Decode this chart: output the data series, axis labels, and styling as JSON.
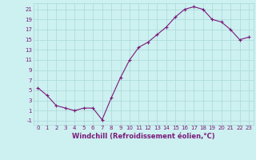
{
  "x": [
    0,
    1,
    2,
    3,
    4,
    5,
    6,
    7,
    8,
    9,
    10,
    11,
    12,
    13,
    14,
    15,
    16,
    17,
    18,
    19,
    20,
    21,
    22,
    23
  ],
  "y": [
    5.5,
    4.0,
    2.0,
    1.5,
    1.0,
    1.5,
    1.5,
    -0.8,
    3.5,
    7.5,
    11.0,
    13.5,
    14.5,
    16.0,
    17.5,
    19.5,
    21.0,
    21.5,
    21.0,
    19.0,
    18.5,
    17.0,
    15.0,
    15.5
  ],
  "line_color": "#7a1a7a",
  "marker": "+",
  "bg_color": "#cdf0f0",
  "grid_color": "#aad8d8",
  "xlabel": "Windchill (Refroidissement éolien,°C)",
  "xlabel_color": "#7a1a7a",
  "tick_color": "#7a1a7a",
  "ylim": [
    -1.8,
    22.2
  ],
  "xlim": [
    -0.5,
    23.5
  ],
  "yticks": [
    -1,
    1,
    3,
    5,
    7,
    9,
    11,
    13,
    15,
    17,
    19,
    21
  ],
  "xticks": [
    0,
    1,
    2,
    3,
    4,
    5,
    6,
    7,
    8,
    9,
    10,
    11,
    12,
    13,
    14,
    15,
    16,
    17,
    18,
    19,
    20,
    21,
    22,
    23
  ],
  "xtick_labels": [
    "0",
    "1",
    "2",
    "3",
    "4",
    "5",
    "6",
    "7",
    "8",
    "9",
    "10",
    "11",
    "12",
    "13",
    "14",
    "15",
    "16",
    "17",
    "18",
    "19",
    "20",
    "21",
    "22",
    "23"
  ],
  "ytick_labels": [
    "-1",
    "1",
    "3",
    "5",
    "7",
    "9",
    "11",
    "13",
    "15",
    "17",
    "19",
    "21"
  ]
}
